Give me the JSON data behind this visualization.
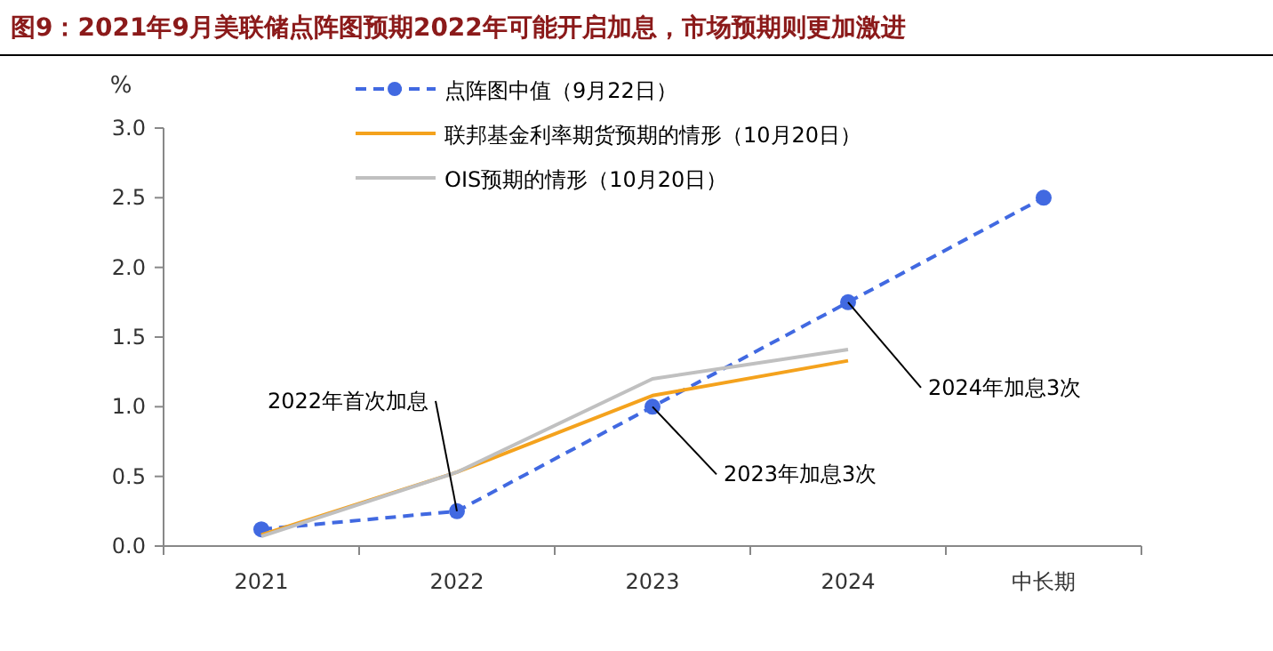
{
  "chart_data": {
    "type": "line",
    "title": "图9：2021年9月美联储点阵图预期2022年可能开启加息，市场预期则更加激进",
    "ylabel": "%",
    "categories": [
      "2021",
      "2022",
      "2023",
      "2024",
      "中长期"
    ],
    "series": [
      {
        "name": "点阵图中值（9月22日）",
        "color": "#4169e1",
        "values": [
          0.12,
          0.25,
          1.0,
          1.75,
          2.5
        ],
        "marker": "circle",
        "line_style": "dashed"
      },
      {
        "name": "联邦基金利率期货预期的情形（10月20日）",
        "color": "#f4a21d",
        "values": [
          0.08,
          0.53,
          1.08,
          1.33,
          null
        ],
        "marker": "none",
        "line_style": "solid"
      },
      {
        "name": "OIS预期的情形（10月20日）",
        "color": "#c0c0c0",
        "values": [
          0.07,
          0.53,
          1.2,
          1.41,
          null
        ],
        "marker": "none",
        "line_style": "solid"
      }
    ],
    "ylim": [
      0,
      3
    ],
    "yticks": [
      {
        "value": 0,
        "label": "0.0"
      },
      {
        "value": 0.5,
        "label": "0.5"
      },
      {
        "value": 1,
        "label": "1.0"
      },
      {
        "value": 1.5,
        "label": "1.5"
      },
      {
        "value": 2,
        "label": "2.0"
      },
      {
        "value": 2.5,
        "label": "2.5"
      },
      {
        "value": 3,
        "label": "3.0"
      }
    ],
    "grid": false,
    "legend": "top",
    "annotations": [
      {
        "text": "2022年首次加息",
        "x": "2022",
        "y": 0.25
      },
      {
        "text": "2023年加息3次",
        "x": "2023",
        "y": 1.0
      },
      {
        "text": "2024年加息3次",
        "x": "2024",
        "y": 1.75
      }
    ]
  }
}
